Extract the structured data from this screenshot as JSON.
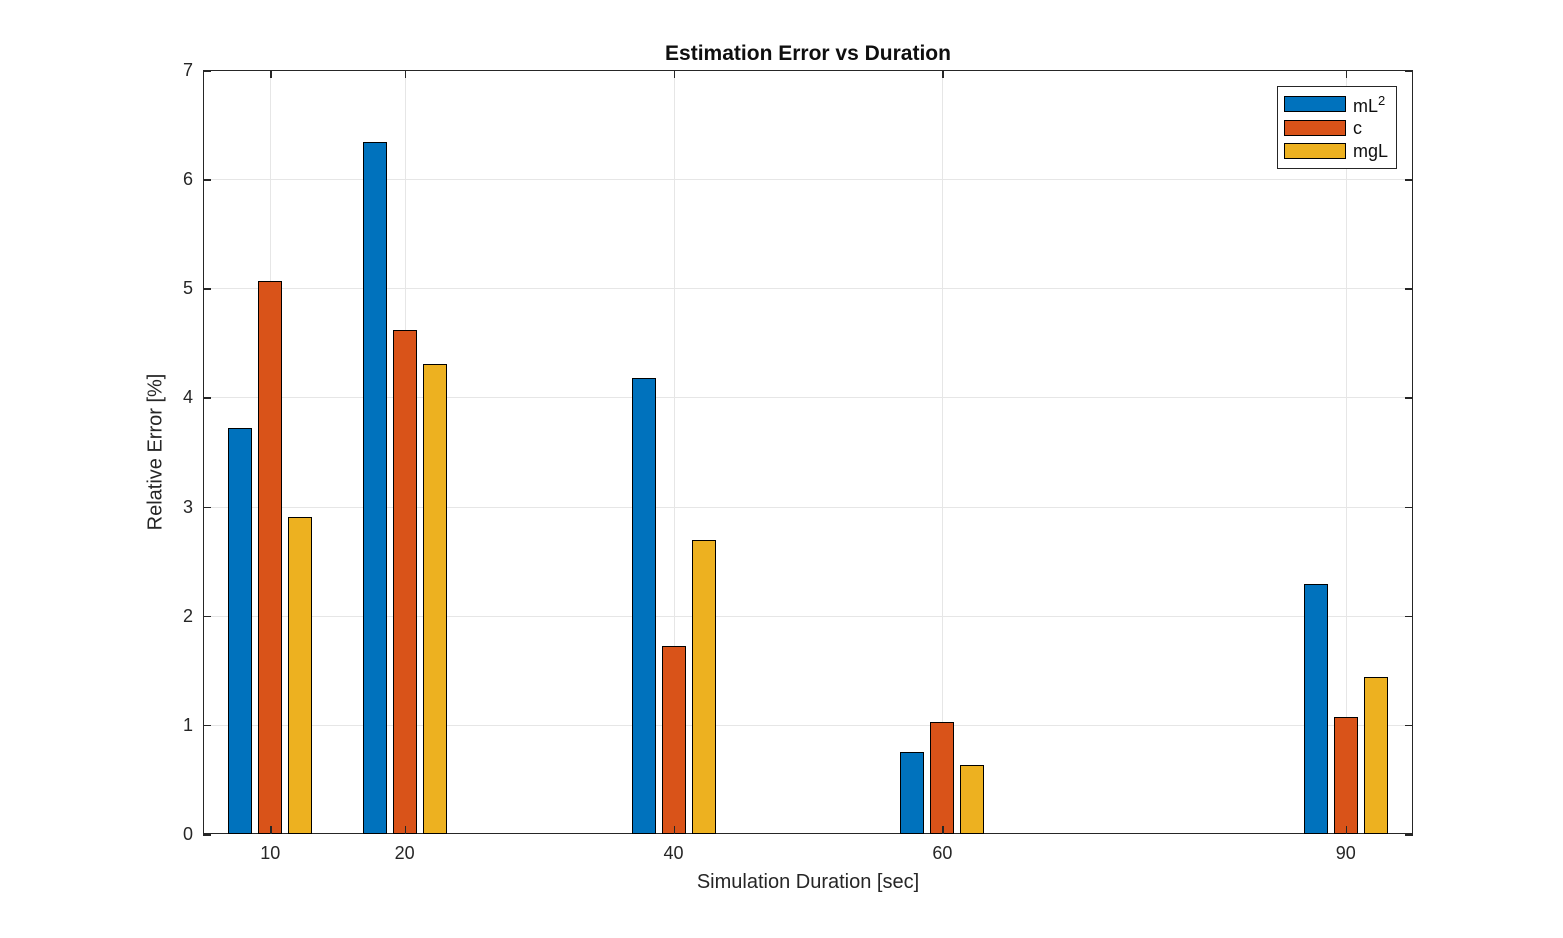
{
  "figure": {
    "background": "#ffffff"
  },
  "chart_data": {
    "type": "bar",
    "title": "Estimation Error vs Duration",
    "xlabel": "Simulation Duration [sec]",
    "ylabel": "Relative Error [%]",
    "categories": [
      10,
      20,
      40,
      60,
      90
    ],
    "series": [
      {
        "name": "mL",
        "name_superscript": "2",
        "color": "#0072BD",
        "values": [
          3.72,
          6.34,
          4.18,
          0.75,
          2.29
        ]
      },
      {
        "name": "c",
        "name_superscript": "",
        "color": "#D95319",
        "values": [
          5.07,
          4.62,
          1.72,
          1.03,
          1.07
        ]
      },
      {
        "name": "mgL",
        "name_superscript": "",
        "color": "#EDB120",
        "values": [
          2.9,
          4.31,
          2.69,
          0.63,
          1.44
        ]
      }
    ],
    "xlim": [
      5,
      95
    ],
    "ylim": [
      0,
      7
    ],
    "yticks": [
      0,
      1,
      2,
      3,
      4,
      5,
      6,
      7
    ],
    "xticks": [
      10,
      20,
      40,
      60,
      90
    ],
    "grid": true,
    "legend_position": "northeast",
    "bar_edge_color": "#000000",
    "grid_color": "#e6e6e6",
    "axis_color": "#262626"
  }
}
